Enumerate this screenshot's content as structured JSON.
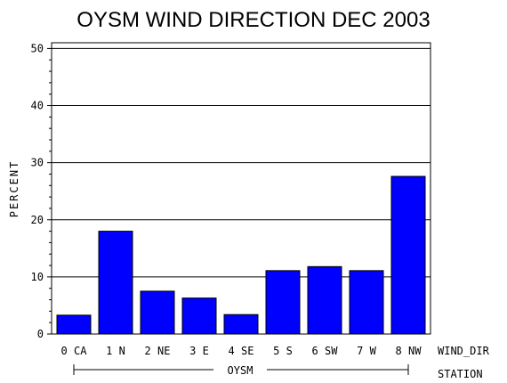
{
  "chart_data": {
    "type": "bar",
    "title": "OYSM WIND DIRECTION DEC 2003",
    "ylabel": "PERCENT",
    "xlabel": "WIND_DIR",
    "group_axis_label": "STATION",
    "group_label": "OYSM",
    "ylim": [
      0,
      51
    ],
    "yticks": [
      0,
      10,
      20,
      30,
      40,
      50
    ],
    "grid": true,
    "categories": [
      "0 CA",
      "1 N",
      "2 NE",
      "3 E",
      "4 SE",
      "5 S",
      "6 SW",
      "7 W",
      "8 NW"
    ],
    "values": [
      3.3,
      18.0,
      7.5,
      6.3,
      3.4,
      11.1,
      11.8,
      11.1,
      27.6
    ],
    "bar_color": "#0000ff"
  }
}
